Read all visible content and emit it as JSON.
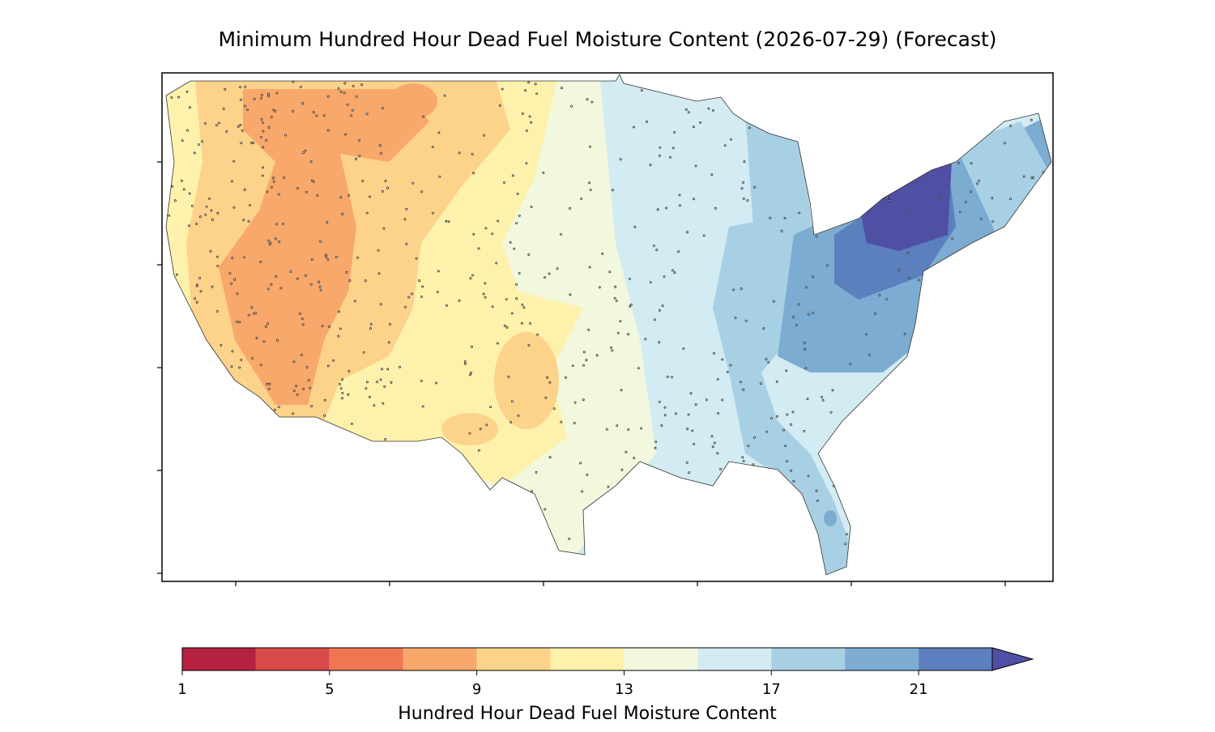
{
  "map": {
    "title": "Minimum Hundred Hour Dead Fuel Moisture Content (2026-07-29) (Forecast)",
    "colorbar": {
      "label": "Hundred Hour Dead Fuel Moisture Content",
      "levels": [
        1,
        3,
        5,
        7,
        9,
        11,
        13,
        15,
        17,
        19,
        21,
        23
      ],
      "colors": [
        "#b5213f",
        "#d84a4a",
        "#ef7652",
        "#f8a86b",
        "#fdd28b",
        "#fef1ab",
        "#f1f8de",
        "#d3ebf3",
        "#a8d0e4",
        "#7cacd2",
        "#5b80bd"
      ],
      "extend_color": "#4f4fa3",
      "ticks": [
        1,
        5,
        9,
        13,
        17,
        21
      ]
    }
  }
}
